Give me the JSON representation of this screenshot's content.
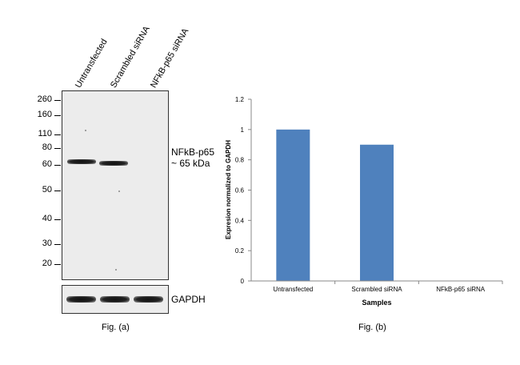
{
  "figure_a": {
    "lanes": [
      "Untransfected",
      "Scrambled siRNA",
      "NFkB-p65  siRNA"
    ],
    "mw_markers": [
      "260",
      "160",
      "110",
      "80",
      "60",
      "50",
      "40",
      "30",
      "20"
    ],
    "band_label_line1": "NFkB-p65",
    "band_label_line2": "~ 65 kDa",
    "loading_control": "GAPDH",
    "caption": "Fig. (a)"
  },
  "figure_b": {
    "caption": "Fig. (b)"
  },
  "chart_data": {
    "type": "bar",
    "categories": [
      "Untransfected",
      "Scrambled siRNA",
      "NFkB-p65 siRNA"
    ],
    "values": [
      1.0,
      0.9,
      0.0
    ],
    "xlabel": "Samples",
    "ylabel": "Expresion  normalized to GAPDH",
    "ylim": [
      0,
      1.2
    ],
    "yticks": [
      "0",
      "0.2",
      "0.4",
      "0.6",
      "0.8",
      "1",
      "1.2"
    ],
    "bar_color": "#4f81bd",
    "grid": false,
    "legend": "none"
  }
}
